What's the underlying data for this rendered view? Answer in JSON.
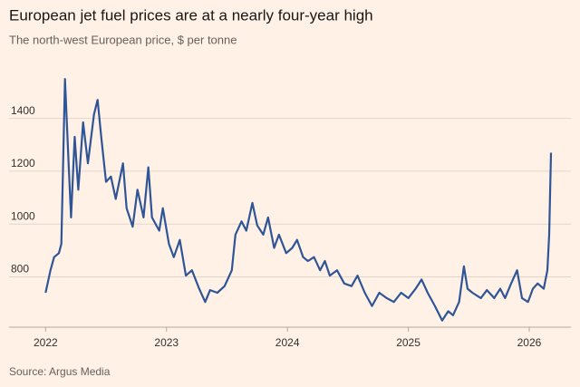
{
  "chart_data": {
    "type": "line",
    "title": "European jet fuel prices are at a nearly four-year high",
    "subtitle": "The north-west European price, $ per tonne",
    "source": "Source: Argus Media",
    "color": "#2f5597",
    "grid": true,
    "x": [
      2022.0,
      2022.04,
      2022.07,
      2022.11,
      2022.13,
      2022.16,
      2022.19,
      2022.21,
      2022.24,
      2022.27,
      2022.31,
      2022.35,
      2022.4,
      2022.43,
      2022.46,
      2022.5,
      2022.54,
      2022.58,
      2022.64,
      2022.67,
      2022.72,
      2022.76,
      2022.81,
      2022.85,
      2022.88,
      2022.94,
      2022.97,
      2023.02,
      2023.06,
      2023.11,
      2023.16,
      2023.21,
      2023.27,
      2023.32,
      2023.36,
      2023.42,
      2023.48,
      2023.54,
      2023.57,
      2023.62,
      2023.66,
      2023.71,
      2023.75,
      2023.8,
      2023.84,
      2023.89,
      2023.93,
      2023.99,
      2024.04,
      2024.08,
      2024.13,
      2024.17,
      2024.22,
      2024.27,
      2024.31,
      2024.35,
      2024.41,
      2024.47,
      2024.53,
      2024.58,
      2024.64,
      2024.7,
      2024.76,
      2024.82,
      2024.88,
      2024.94,
      2025.0,
      2025.06,
      2025.11,
      2025.16,
      2025.22,
      2025.28,
      2025.33,
      2025.37,
      2025.42,
      2025.46,
      2025.49,
      2025.53,
      2025.6,
      2025.65,
      2025.71,
      2025.76,
      2025.8,
      2025.85,
      2025.9,
      2025.94,
      2025.99,
      2026.03,
      2026.07,
      2026.12,
      2026.15,
      2026.165,
      2026.18
    ],
    "values": [
      740,
      825,
      875,
      890,
      925,
      1549,
      1230,
      1025,
      1330,
      1130,
      1385,
      1230,
      1415,
      1470,
      1330,
      1160,
      1180,
      1095,
      1230,
      1060,
      990,
      1130,
      1025,
      1215,
      1025,
      975,
      1060,
      925,
      875,
      940,
      805,
      825,
      755,
      705,
      750,
      740,
      765,
      825,
      960,
      1010,
      975,
      1080,
      995,
      960,
      1025,
      910,
      960,
      890,
      910,
      940,
      875,
      860,
      875,
      825,
      860,
      805,
      825,
      775,
      765,
      805,
      740,
      690,
      740,
      720,
      705,
      740,
      720,
      755,
      790,
      740,
      690,
      635,
      670,
      655,
      705,
      840,
      755,
      740,
      720,
      750,
      720,
      755,
      720,
      775,
      825,
      720,
      705,
      755,
      775,
      755,
      825,
      960,
      1270
    ],
    "xlim": [
      2021.96,
      2026.27
    ],
    "xticks": [
      2022,
      2023,
      2024,
      2025,
      2026
    ],
    "ylim": [
      620,
      1560
    ],
    "yticks": [
      800,
      1000,
      1200,
      1400
    ]
  }
}
